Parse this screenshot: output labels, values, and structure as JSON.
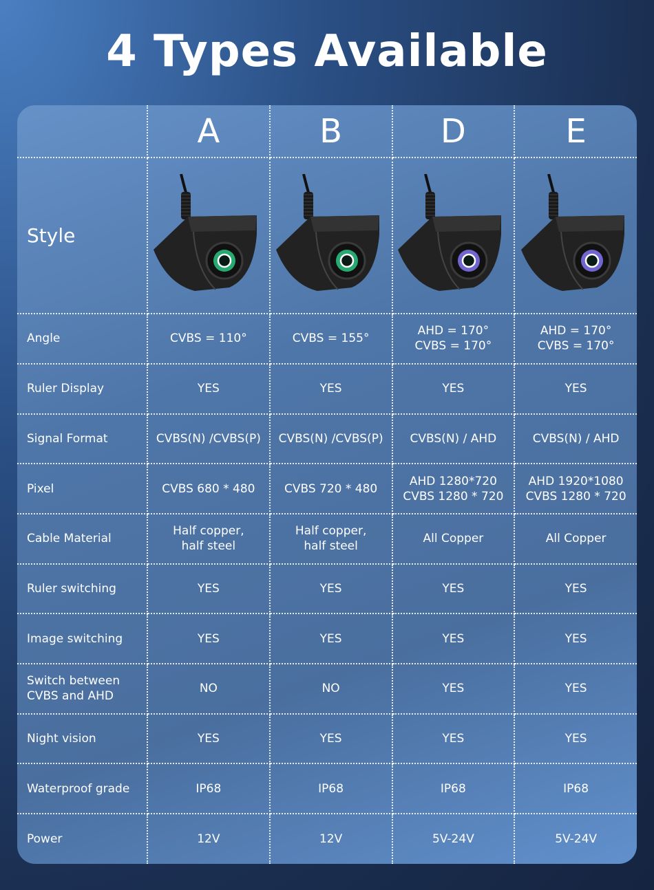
{
  "title": "4 Types Available",
  "style_label": "Style",
  "models": [
    "A",
    "B",
    "D",
    "E"
  ],
  "lens_colors": [
    "#2ecf8a",
    "#2ecf8a",
    "#8a7cff",
    "#8a7cff"
  ],
  "rows": [
    {
      "label": "Angle",
      "values": [
        "CVBS = 110°",
        "CVBS = 155°",
        "AHD = 170°\nCVBS = 170°",
        "AHD = 170°\nCVBS = 170°"
      ]
    },
    {
      "label": "Ruler Display",
      "values": [
        "YES",
        "YES",
        "YES",
        "YES"
      ]
    },
    {
      "label": "Signal Format",
      "values": [
        "CVBS(N) /CVBS(P)",
        "CVBS(N) /CVBS(P)",
        "CVBS(N) / AHD",
        "CVBS(N) / AHD"
      ]
    },
    {
      "label": "Pixel",
      "values": [
        "CVBS 680 * 480",
        "CVBS 720 * 480",
        "AHD 1280*720\nCVBS 1280 * 720",
        "AHD 1920*1080\nCVBS 1280 * 720"
      ]
    },
    {
      "label": "Cable Material",
      "values": [
        "Half copper,\nhalf steel",
        "Half copper,\nhalf steel",
        "All Copper",
        "All Copper"
      ]
    },
    {
      "label": "Ruler switching",
      "values": [
        "YES",
        "YES",
        "YES",
        "YES"
      ]
    },
    {
      "label": "Image switching",
      "values": [
        "YES",
        "YES",
        "YES",
        "YES"
      ]
    },
    {
      "label": "Switch between\nCVBS and AHD",
      "values": [
        "NO",
        "NO",
        "YES",
        "YES"
      ]
    },
    {
      "label": "Night vision",
      "values": [
        "YES",
        "YES",
        "YES",
        "YES"
      ]
    },
    {
      "label": "Waterproof grade",
      "values": [
        "IP68",
        "IP68",
        "IP68",
        "IP68"
      ]
    },
    {
      "label": "Power",
      "values": [
        "12V",
        "12V",
        "5V-24V",
        "5V-24V"
      ]
    }
  ]
}
